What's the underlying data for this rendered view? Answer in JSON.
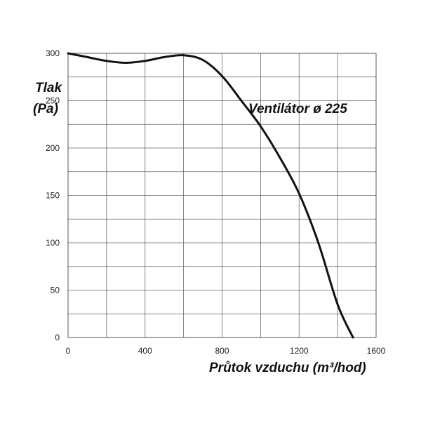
{
  "chart_data": {
    "type": "line",
    "title": "",
    "ylabel_line1": "Tlak",
    "ylabel_line2": "(Pa)",
    "xlabel": "Průtok vzduchu (m³/hod)",
    "annotation": "Ventilátor ø 225",
    "xlim": [
      0,
      1600
    ],
    "ylim": [
      0,
      300
    ],
    "x_ticks": [
      0,
      400,
      800,
      1200,
      1600
    ],
    "y_ticks": [
      0,
      50,
      100,
      150,
      200,
      250,
      300
    ],
    "x_grid": [
      0,
      200,
      400,
      600,
      800,
      1000,
      1200,
      1400,
      1600
    ],
    "y_grid": [
      0,
      25,
      50,
      75,
      100,
      125,
      150,
      175,
      200,
      225,
      250,
      275,
      300
    ],
    "grid": true,
    "legend": "none",
    "series": [
      {
        "color": "#111111",
        "x": [
          0,
          100,
          200,
          300,
          400,
          500,
          600,
          700,
          800,
          900,
          1000,
          1100,
          1200,
          1300,
          1400,
          1480
        ],
        "y": [
          300,
          296,
          292,
          290,
          292,
          296,
          298,
          293,
          276,
          250,
          223,
          190,
          152,
          100,
          35,
          0
        ]
      }
    ]
  }
}
